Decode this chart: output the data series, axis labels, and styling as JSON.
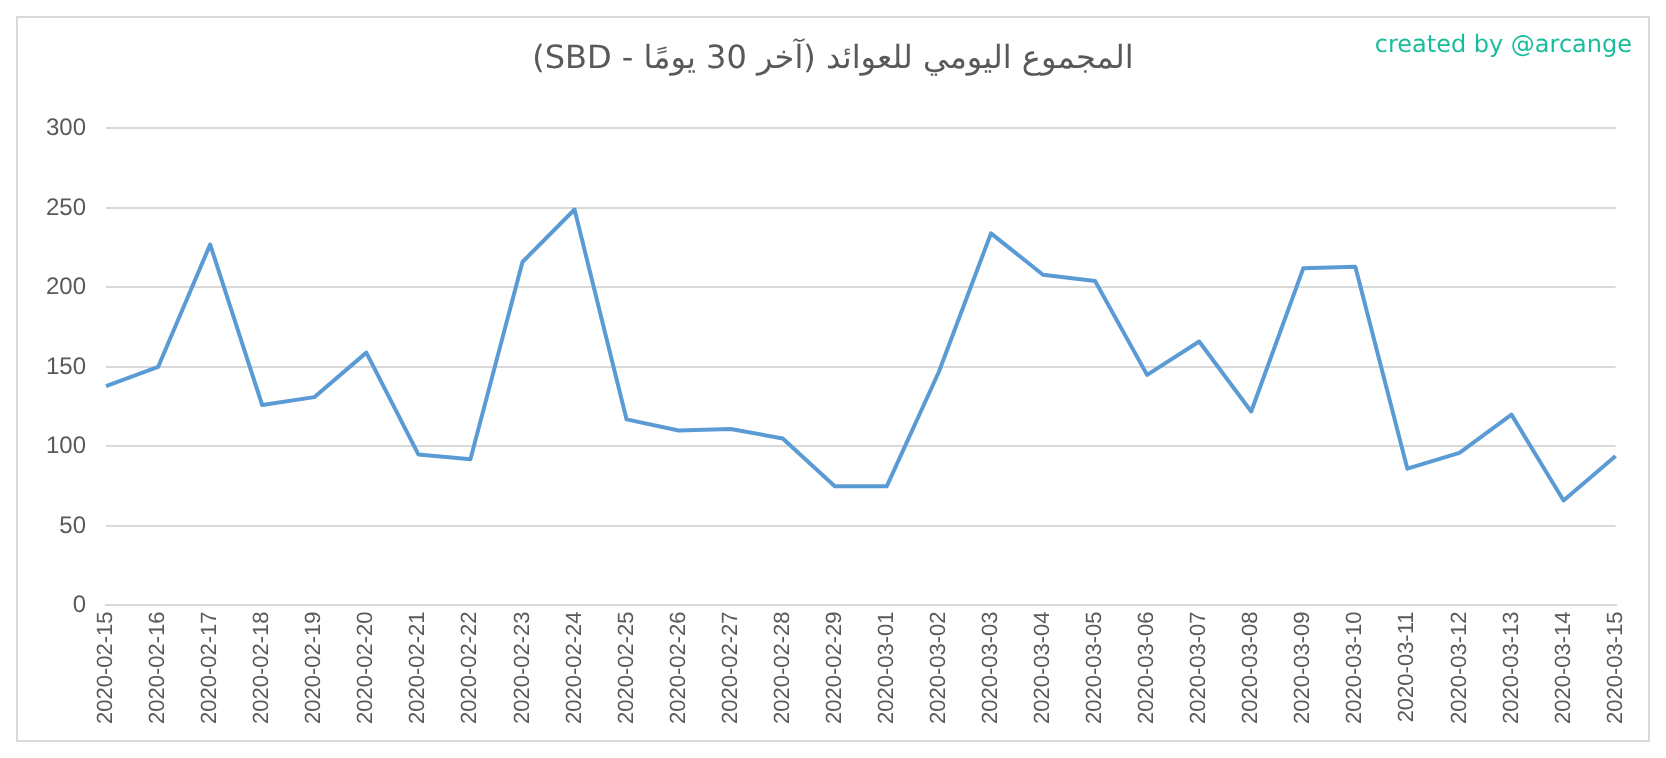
{
  "chart_data": {
    "type": "line",
    "title": "المجموع اليومي للعوائد (آخر 30 يومًا - SBD)",
    "annotations": [
      "created by @arcange"
    ],
    "categories": [
      "2020-02-15",
      "2020-02-16",
      "2020-02-17",
      "2020-02-18",
      "2020-02-19",
      "2020-02-20",
      "2020-02-21",
      "2020-02-22",
      "2020-02-23",
      "2020-02-24",
      "2020-02-25",
      "2020-02-26",
      "2020-02-27",
      "2020-02-28",
      "2020-02-29",
      "2020-03-01",
      "2020-03-02",
      "2020-03-03",
      "2020-03-04",
      "2020-03-05",
      "2020-03-06",
      "2020-03-07",
      "2020-03-08",
      "2020-03-09",
      "2020-03-10",
      "2020-03-11",
      "2020-03-12",
      "2020-03-13",
      "2020-03-14",
      "2020-03-15"
    ],
    "series": [
      {
        "color": "#5b9bd5",
        "values": [
          138,
          150,
          227,
          126,
          131,
          159,
          95,
          92,
          216,
          249,
          117,
          110,
          111,
          105,
          75,
          75,
          147,
          234,
          208,
          204,
          145,
          166,
          122,
          212,
          213,
          86,
          96,
          120,
          66,
          94
        ]
      }
    ],
    "ylim": [
      0,
      300
    ],
    "yticks": [
      0,
      50,
      100,
      150,
      200,
      250,
      300
    ],
    "grid": "y",
    "legend": false,
    "marker": "none",
    "line_style": "solid"
  }
}
